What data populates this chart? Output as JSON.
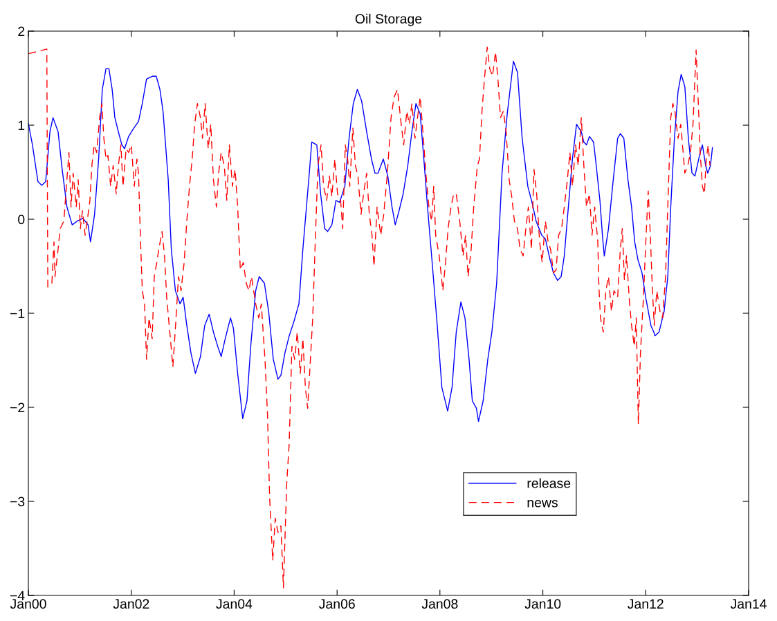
{
  "chart_data": {
    "type": "line",
    "title": "Oil Storage",
    "xlim": [
      "2000-01",
      "2014-01"
    ],
    "xticks": [
      {
        "value": "2000-01",
        "label": "Jan00"
      },
      {
        "value": "2002-01",
        "label": "Jan02"
      },
      {
        "value": "2004-01",
        "label": "Jan04"
      },
      {
        "value": "2006-01",
        "label": "Jan06"
      },
      {
        "value": "2008-01",
        "label": "Jan08"
      },
      {
        "value": "2010-01",
        "label": "Jan10"
      },
      {
        "value": "2012-01",
        "label": "Jan12"
      },
      {
        "value": "2014-01",
        "label": "Jan14"
      }
    ],
    "ylim": [
      -4,
      2
    ],
    "yticks": [
      {
        "value": -4,
        "label": "−4"
      },
      {
        "value": -3,
        "label": "−3"
      },
      {
        "value": -2,
        "label": "−2"
      },
      {
        "value": -1,
        "label": "−1"
      },
      0,
      1,
      2
    ],
    "grid": false,
    "legend": "bottom right",
    "series": [
      {
        "name": "release",
        "color": "#0000ff",
        "line_style": "solid",
        "x": [
          "2000-01-01",
          "2000-01-30",
          "2000-03-09",
          "2000-04-05",
          "2000-05-03",
          "2000-06-02",
          "2000-06-24",
          "2000-07-30",
          "2000-08-28",
          "2000-10-01",
          "2000-11-07",
          "2000-12-13",
          "2001-01-22",
          "2001-02-28",
          "2001-03-17",
          "2001-04-15",
          "2001-05-14",
          "2001-06-09",
          "2001-07-05",
          "2001-07-26",
          "2001-08-18",
          "2001-09-06",
          "2001-10-01",
          "2001-10-26",
          "2001-11-14",
          "2001-12-13",
          "2002-01-15",
          "2002-02-21",
          "2002-03-20",
          "2002-04-19",
          "2002-05-29",
          "2002-06-27",
          "2002-07-23",
          "2002-08-14",
          "2002-09-20",
          "2002-10-12",
          "2002-11-10",
          "2002-12-13",
          "2003-01-04",
          "2003-01-30",
          "2003-02-28",
          "2003-04-01",
          "2003-05-07",
          "2003-06-06",
          "2003-07-08",
          "2003-08-07",
          "2003-09-06",
          "2003-10-01",
          "2003-10-30",
          "2003-12-06",
          "2003-12-27",
          "2004-01-26",
          "2004-03-02",
          "2004-04-01",
          "2004-04-30",
          "2004-06-02",
          "2004-06-27",
          "2004-08-03",
          "2004-09-02",
          "2004-10-05",
          "2004-11-07",
          "2004-11-28",
          "2004-12-27",
          "2005-01-26",
          "2005-02-28",
          "2005-04-05",
          "2005-05-03",
          "2005-06-16",
          "2005-07-05",
          "2005-08-10",
          "2005-09-06",
          "2005-10-05",
          "2005-10-26",
          "2005-11-25",
          "2005-12-24",
          "2006-01-19",
          "2006-02-25",
          "2006-03-27",
          "2006-04-26",
          "2006-05-25",
          "2006-06-24",
          "2006-07-30",
          "2006-09-02",
          "2006-09-27",
          "2006-10-19",
          "2006-11-25",
          "2006-12-27",
          "2007-01-26",
          "2007-02-18",
          "2007-03-17",
          "2007-04-15",
          "2007-05-18",
          "2007-06-16",
          "2007-07-15",
          "2007-08-14",
          "2007-09-09",
          "2007-10-05",
          "2007-11-07",
          "2007-12-13",
          "2008-01-15",
          "2008-02-25",
          "2008-03-27",
          "2008-04-26",
          "2008-05-29",
          "2008-06-27",
          "2008-07-26",
          "2008-08-18",
          "2008-09-16",
          "2008-10-01",
          "2008-11-03",
          "2008-12-06",
          "2009-01-04",
          "2009-02-07",
          "2009-03-17",
          "2009-04-23",
          "2009-06-06",
          "2009-07-05",
          "2009-08-07",
          "2009-09-16",
          "2009-10-19",
          "2009-11-14",
          "2009-12-24",
          "2010-01-19",
          "2010-02-21",
          "2010-03-17",
          "2010-04-15",
          "2010-05-11",
          "2010-06-02",
          "2010-07-01",
          "2010-07-30",
          "2010-08-28",
          "2010-10-01",
          "2010-10-19",
          "2010-11-07",
          "2010-11-28",
          "2010-12-27",
          "2011-01-15",
          "2011-02-10",
          "2011-02-28",
          "2011-03-13",
          "2011-04-12",
          "2011-05-11",
          "2011-06-16",
          "2011-07-05",
          "2011-07-30",
          "2011-08-28",
          "2011-09-23",
          "2011-10-15",
          "2011-11-07",
          "2011-12-06",
          "2012-01-01",
          "2012-01-15",
          "2012-02-07",
          "2012-02-28",
          "2012-03-06",
          "2012-04-05",
          "2012-05-11",
          "2012-06-06",
          "2012-06-27",
          "2012-07-23",
          "2012-08-18",
          "2012-09-09",
          "2012-10-05",
          "2012-10-30",
          "2012-11-25",
          "2012-12-16",
          "2013-01-22",
          "2013-02-07",
          "2013-03-02",
          "2013-03-17",
          "2013-04-05",
          "2013-04-19"
        ],
        "values": [
          1.02,
          0.79,
          0.4,
          0.36,
          0.4,
          0.93,
          1.08,
          0.93,
          0.53,
          0.13,
          -0.06,
          -0.02,
          0.01,
          -0.06,
          -0.24,
          0.05,
          0.64,
          1.38,
          1.6,
          1.6,
          1.38,
          1.08,
          0.93,
          0.79,
          0.75,
          0.88,
          0.96,
          1.04,
          1.23,
          1.49,
          1.52,
          1.52,
          1.38,
          1.15,
          0.42,
          -0.32,
          -0.76,
          -0.9,
          -0.83,
          -1.13,
          -1.42,
          -1.64,
          -1.46,
          -1.13,
          -1.01,
          -1.2,
          -1.35,
          -1.46,
          -1.27,
          -1.05,
          -1.16,
          -1.64,
          -2.12,
          -1.93,
          -1.31,
          -0.76,
          -0.61,
          -0.68,
          -0.98,
          -1.49,
          -1.7,
          -1.66,
          -1.42,
          -1.24,
          -1.09,
          -0.9,
          -0.32,
          0.46,
          0.82,
          0.79,
          0.27,
          -0.1,
          -0.13,
          -0.06,
          0.2,
          0.18,
          0.35,
          0.86,
          1.23,
          1.38,
          1.26,
          0.93,
          0.64,
          0.49,
          0.49,
          0.64,
          0.46,
          0.13,
          -0.06,
          0.09,
          0.27,
          0.57,
          0.93,
          1.23,
          1.12,
          0.64,
          0.13,
          -0.46,
          -1.13,
          -1.79,
          -2.04,
          -1.79,
          -1.2,
          -0.88,
          -1.05,
          -1.49,
          -1.93,
          -2.01,
          -2.15,
          -1.93,
          -1.49,
          -1.2,
          -0.68,
          0.49,
          1.12,
          1.68,
          1.56,
          0.86,
          0.35,
          0.16,
          -0.02,
          -0.17,
          -0.21,
          -0.43,
          -0.57,
          -0.65,
          -0.61,
          -0.39,
          0.13,
          0.64,
          1.01,
          0.93,
          0.82,
          0.79,
          0.88,
          0.82,
          0.57,
          0.2,
          -0.17,
          -0.39,
          -0.1,
          0.35,
          0.86,
          0.91,
          0.86,
          0.42,
          0.13,
          -0.24,
          -0.43,
          -0.57,
          -0.83,
          -0.94,
          -1.13,
          -1.2,
          -1.24,
          -1.2,
          -0.98,
          -0.61,
          0.13,
          0.86,
          1.36,
          1.54,
          1.41,
          0.86,
          0.49,
          0.46,
          0.71,
          0.79,
          0.57,
          0.49,
          0.57,
          0.76
        ]
      },
      {
        "name": "news",
        "color": "#ff0000",
        "line_style": "dashed",
        "x": [
          "2000-01-01",
          "2000-03-24",
          "2000-05-11",
          "2000-05-18",
          "2000-06-16",
          "2000-07-01",
          "2000-07-08",
          "2000-07-30",
          "2000-08-14",
          "2000-09-09",
          "2000-09-27",
          "2000-10-15",
          "2000-10-30",
          "2000-11-14",
          "2000-12-06",
          "2000-12-20",
          "2001-01-04",
          "2001-01-19",
          "2001-02-07",
          "2001-02-28",
          "2001-03-13",
          "2001-03-27",
          "2001-04-12",
          "2001-04-30",
          "2001-05-21",
          "2001-06-06",
          "2001-06-20",
          "2001-07-05",
          "2001-07-19",
          "2001-08-07",
          "2001-08-25",
          "2001-09-16",
          "2001-10-01",
          "2001-10-19",
          "2001-11-03",
          "2001-11-25",
          "2001-12-13",
          "2002-01-01",
          "2002-01-22",
          "2002-02-10",
          "2002-02-21",
          "2002-03-06",
          "2002-03-20",
          "2002-04-05",
          "2002-04-19",
          "2002-05-07",
          "2002-05-29",
          "2002-06-13",
          "2002-07-01",
          "2002-07-15",
          "2002-08-07",
          "2002-08-25",
          "2002-09-09",
          "2002-09-27",
          "2002-10-23",
          "2002-11-10",
          "2002-12-02",
          "2002-12-20",
          "2003-01-11",
          "2003-01-30",
          "2003-02-18",
          "2003-03-09",
          "2003-03-27",
          "2003-04-15",
          "2003-05-07",
          "2003-05-21",
          "2003-06-09",
          "2003-07-01",
          "2003-07-19",
          "2003-08-07",
          "2003-08-28",
          "2003-09-13",
          "2003-10-01",
          "2003-10-23",
          "2003-11-10",
          "2003-11-28",
          "2003-12-20",
          "2004-01-08",
          "2004-01-26",
          "2004-02-14",
          "2004-03-06",
          "2004-03-27",
          "2004-04-15",
          "2004-05-03",
          "2004-06-02",
          "2004-06-24",
          "2004-07-12",
          "2004-08-07",
          "2004-08-25",
          "2004-09-09",
          "2004-10-01",
          "2004-10-19",
          "2004-11-07",
          "2004-11-28",
          "2004-12-16",
          "2005-01-08",
          "2005-01-26",
          "2005-02-14",
          "2005-03-06",
          "2005-03-24",
          "2005-04-15",
          "2005-05-03",
          "2005-05-21",
          "2005-06-06",
          "2005-06-20",
          "2005-07-12",
          "2005-07-30",
          "2005-08-18",
          "2005-09-09",
          "2005-09-27",
          "2005-10-19",
          "2005-11-07",
          "2005-11-25",
          "2005-12-16",
          "2006-01-04",
          "2006-01-26",
          "2006-02-10",
          "2006-02-28",
          "2006-03-17",
          "2006-04-01",
          "2006-04-23",
          "2006-05-11",
          "2006-05-29",
          "2006-06-20",
          "2006-07-08",
          "2006-07-30",
          "2006-08-18",
          "2006-09-06",
          "2006-09-20",
          "2006-10-12",
          "2006-11-07",
          "2006-11-28",
          "2006-12-24",
          "2007-01-19",
          "2007-02-10",
          "2007-03-06",
          "2007-04-01",
          "2007-04-19",
          "2007-05-11",
          "2007-05-29",
          "2007-06-16",
          "2007-07-08",
          "2007-07-26",
          "2007-08-14",
          "2007-09-06",
          "2007-09-23",
          "2007-10-15",
          "2007-11-03",
          "2007-11-18",
          "2007-12-02",
          "2007-12-27",
          "2008-01-22",
          "2008-02-10",
          "2008-02-28",
          "2008-03-20",
          "2008-04-08",
          "2008-04-26",
          "2008-05-21",
          "2008-06-13",
          "2008-07-01",
          "2008-07-19",
          "2008-08-10",
          "2008-08-28",
          "2008-09-23",
          "2008-10-08",
          "2008-10-26",
          "2008-11-10",
          "2008-12-02",
          "2008-12-20",
          "2009-01-08",
          "2009-01-30",
          "2009-02-18",
          "2009-03-06",
          "2009-03-27",
          "2009-04-15",
          "2009-05-07",
          "2009-05-25",
          "2009-06-13",
          "2009-07-05",
          "2009-07-23",
          "2009-08-14",
          "2009-09-02",
          "2009-09-20",
          "2009-10-12",
          "2009-10-30",
          "2009-11-18",
          "2009-12-09",
          "2009-12-27",
          "2010-01-19",
          "2010-02-07",
          "2010-02-25",
          "2010-03-17",
          "2010-04-05",
          "2010-04-23",
          "2010-05-14",
          "2010-06-02",
          "2010-06-24",
          "2010-07-12",
          "2010-07-30",
          "2010-08-21",
          "2010-09-09",
          "2010-10-01",
          "2010-10-19",
          "2010-11-07",
          "2010-11-28",
          "2010-12-16",
          "2011-01-04",
          "2011-01-26",
          "2011-02-03",
          "2011-02-14",
          "2011-03-06",
          "2011-03-24",
          "2011-04-12",
          "2011-05-03",
          "2011-05-21",
          "2011-06-16",
          "2011-07-05",
          "2011-07-19",
          "2011-08-03",
          "2011-08-18",
          "2011-09-09",
          "2011-09-23",
          "2011-10-12",
          "2011-10-26",
          "2011-11-10",
          "2011-11-25",
          "2011-12-16",
          "2012-01-04",
          "2012-01-19",
          "2012-02-03",
          "2012-02-18",
          "2012-03-02",
          "2012-03-20",
          "2012-04-12",
          "2012-04-30",
          "2012-05-21",
          "2012-06-09",
          "2012-06-27",
          "2012-07-12",
          "2012-07-26",
          "2012-08-18",
          "2012-09-06",
          "2012-09-23",
          "2012-10-05",
          "2012-10-26",
          "2012-11-14",
          "2012-12-02",
          "2012-12-24",
          "2013-01-11",
          "2013-01-22",
          "2013-02-07",
          "2013-02-21",
          "2013-03-06",
          "2013-03-20",
          "2013-04-01"
        ],
        "values": [
          1.76,
          1.79,
          1.81,
          -0.72,
          -0.68,
          -0.24,
          -0.61,
          -0.32,
          -0.1,
          -0.02,
          0.35,
          0.71,
          0.13,
          0.49,
          0.13,
          0.42,
          -0.1,
          0.09,
          -0.17,
          0.05,
          0.2,
          0.57,
          0.79,
          0.71,
          1.08,
          1.23,
          0.86,
          0.64,
          0.68,
          0.35,
          0.57,
          0.27,
          0.57,
          0.79,
          0.35,
          0.75,
          0.71,
          0.79,
          0.35,
          0.64,
          0.49,
          -0.17,
          -0.76,
          -0.9,
          -1.49,
          -1.05,
          -1.27,
          -0.61,
          -0.46,
          -0.32,
          -0.13,
          -0.39,
          -0.83,
          -1.13,
          -1.57,
          -1.16,
          -0.61,
          -0.76,
          -0.46,
          -0.02,
          0.35,
          0.64,
          1.01,
          1.23,
          1.08,
          0.86,
          1.23,
          0.75,
          1.01,
          0.42,
          0.13,
          0.49,
          0.71,
          0.57,
          0.2,
          0.79,
          0.35,
          0.53,
          0.13,
          -0.54,
          -0.46,
          -0.68,
          -0.76,
          -0.61,
          -0.9,
          -1.05,
          -0.9,
          -1.49,
          -2.08,
          -2.96,
          -3.63,
          -3.18,
          -3.33,
          -3.26,
          -3.92,
          -2.82,
          -2.38,
          -1.35,
          -1.49,
          -1.2,
          -1.64,
          -1.27,
          -1.79,
          -2.01,
          -1.64,
          -1.05,
          -0.24,
          0.57,
          0.79,
          0.35,
          0.2,
          0.46,
          0.24,
          0.64,
          0.27,
          0.2,
          -0.1,
          0.79,
          0.64,
          0.35,
          0.97,
          0.57,
          0.46,
          0.05,
          0.27,
          0.49,
          0.05,
          -0.17,
          -0.5,
          0.13,
          -0.17,
          0.05,
          0.49,
          1.08,
          1.3,
          1.38,
          1.01,
          0.79,
          1.15,
          1.01,
          1.23,
          0.86,
          1.08,
          1.3,
          0.86,
          0.49,
          0.13,
          -0.02,
          0.35,
          -0.17,
          -0.39,
          -0.76,
          -0.46,
          -0.1,
          0.13,
          0.27,
          0.27,
          -0.02,
          -0.39,
          -0.17,
          -0.61,
          -0.32,
          0.13,
          0.57,
          0.64,
          1.15,
          1.45,
          1.83,
          1.6,
          1.52,
          1.78,
          1.45,
          1.08,
          1.15,
          0.93,
          0.42,
          0.24,
          -0.02,
          -0.1,
          -0.32,
          -0.39,
          -0.1,
          0.13,
          -0.32,
          0.53,
          0.27,
          -0.24,
          -0.46,
          -0.02,
          -0.24,
          -0.32,
          -0.57,
          -0.54,
          -0.17,
          -0.1,
          0.13,
          0.42,
          0.71,
          0.35,
          0.79,
          0.57,
          1.08,
          0.57,
          0.13,
          0.27,
          -0.17,
          0.13,
          -0.24,
          -0.72,
          -1.05,
          -1.2,
          -0.76,
          -0.61,
          -0.98,
          -0.76,
          -0.83,
          -0.32,
          -0.1,
          -0.65,
          -0.39,
          -0.9,
          -1.13,
          -1.35,
          -1.05,
          -2.18,
          -1.42,
          -0.83,
          -0.17,
          0.3,
          -0.17,
          -0.76,
          -1.13,
          -0.76,
          -0.98,
          -1.05,
          -0.61,
          0.27,
          1.08,
          1.23,
          1.15,
          0.86,
          1.01,
          0.71,
          0.49,
          0.57,
          0.71,
          1.01,
          1.8,
          1.15,
          0.71,
          0.35,
          0.27,
          0.64,
          0.79,
          0.57
        ]
      }
    ]
  }
}
